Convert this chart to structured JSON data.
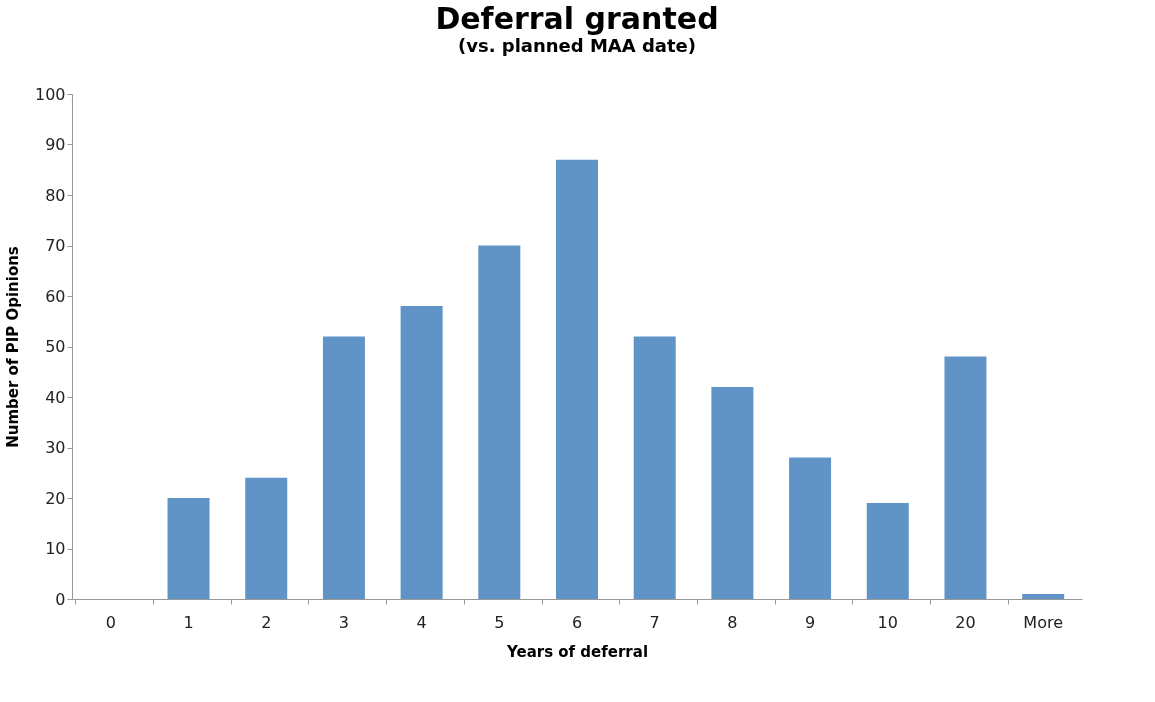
{
  "chart_data": {
    "type": "bar",
    "title": "Deferral granted",
    "subtitle": "(vs. planned MAA date)",
    "xlabel": "Years of deferral",
    "ylabel": "Number of PIP Opinions",
    "categories": [
      "0",
      "1",
      "2",
      "3",
      "4",
      "5",
      "6",
      "7",
      "8",
      "9",
      "10",
      "20",
      "More"
    ],
    "values": [
      0,
      20,
      24,
      52,
      58,
      70,
      87,
      52,
      42,
      28,
      19,
      48,
      1
    ],
    "color": "#6194c6",
    "ylim": [
      0,
      100
    ],
    "yticks": [
      0,
      10,
      20,
      30,
      40,
      50,
      60,
      70,
      80,
      90,
      100
    ],
    "grid": false
  }
}
